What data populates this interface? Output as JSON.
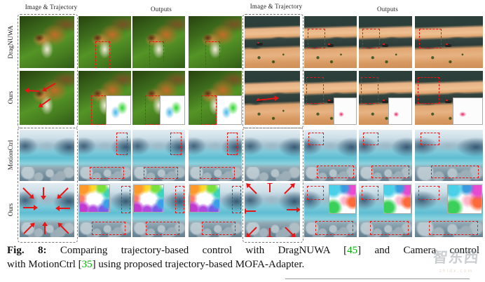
{
  "headers": [
    {
      "label": "Image & Trajectory"
    },
    {
      "label": "Outputs"
    },
    {
      "label": "Image & Trajectory"
    },
    {
      "label": "Outputs"
    }
  ],
  "rows": [
    {
      "label": "DragNUWA"
    },
    {
      "label": "Ours"
    },
    {
      "label": "MotionCtrl"
    },
    {
      "label": "Ours"
    }
  ],
  "caption": {
    "tag": "Fig. 8:",
    "line1": [
      {
        "text": " Comparing trajectory-based control with DragNUWA ["
      },
      {
        "text": "45"
      },
      {
        "text": "] and Camera control"
      }
    ],
    "line2": [
      {
        "text": "with MotionCtrl ["
      },
      {
        "text": "35"
      },
      {
        "text": "] using proposed trajectory-based MOFA-Adapter."
      }
    ],
    "citation_color": "#00b400"
  },
  "watermark": {
    "text": "智东西",
    "subtext": "zhidx.com"
  },
  "colors": {
    "annotation_red": "#ea1515",
    "input_dash_gray": "#777777",
    "rule_gray": "#999999"
  }
}
